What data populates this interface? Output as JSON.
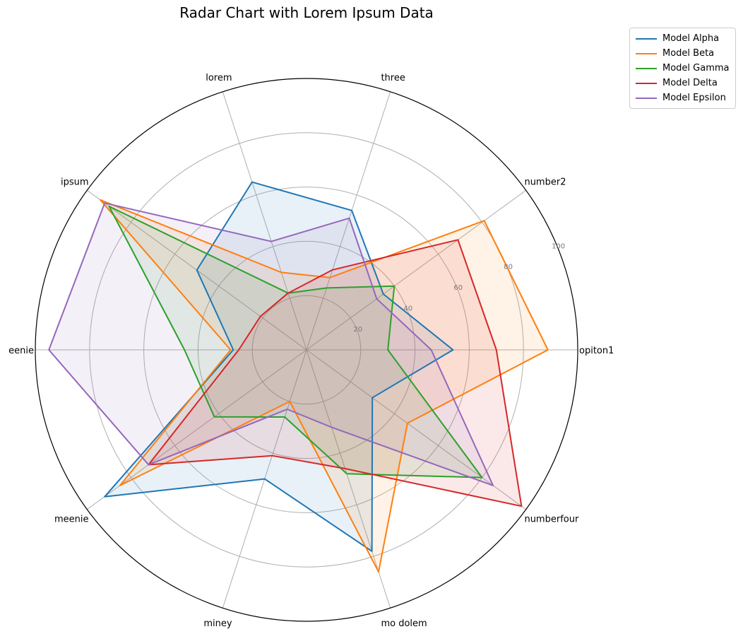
{
  "chart_data": {
    "type": "radar",
    "title": "Radar Chart with Lorem Ipsum Data",
    "categories": [
      "opiton1",
      "number2",
      "three",
      "lorem",
      "ipsum",
      "eenie",
      "meenie",
      "miney",
      "mo dolem",
      "numberfour"
    ],
    "radial_ticks": [
      20,
      40,
      60,
      80,
      100
    ],
    "rlim": [
      0,
      100
    ],
    "grid": true,
    "legend_position": "top-right outside",
    "series": [
      {
        "name": "Model Alpha",
        "color": "#1f77b4",
        "values": [
          54,
          35,
          54,
          65,
          50,
          27,
          92,
          50,
          78,
          30
        ]
      },
      {
        "name": "Model Beta",
        "color": "#ff7f0e",
        "values": [
          89,
          81,
          28,
          30,
          94,
          28,
          85,
          20,
          86,
          46
        ]
      },
      {
        "name": "Model Gamma",
        "color": "#2ca02c",
        "values": [
          30,
          40,
          24,
          22,
          90,
          45,
          42,
          26,
          48,
          80
        ]
      },
      {
        "name": "Model Delta",
        "color": "#d62728",
        "values": [
          70,
          69,
          31,
          22,
          21,
          25,
          72,
          41,
          46,
          98
        ]
      },
      {
        "name": "Model Epsilon",
        "color": "#9467bd",
        "values": [
          46,
          32,
          51,
          42,
          92,
          95,
          72,
          23,
          30,
          85
        ]
      }
    ]
  }
}
